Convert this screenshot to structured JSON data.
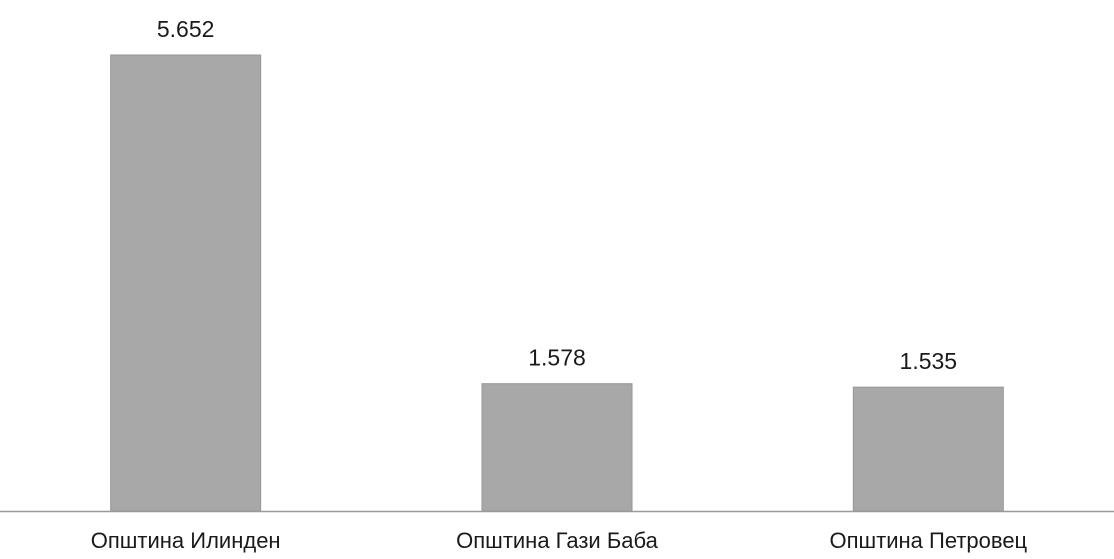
{
  "chart_data": {
    "type": "bar",
    "categories": [
      "Општина Илинден",
      "Општина Гази Баба",
      "Општина Петровец"
    ],
    "values": [
      5652,
      1578,
      1535
    ],
    "value_labels": [
      "5.652",
      "1.578",
      "1.535"
    ],
    "title": "",
    "xlabel": "",
    "ylabel": "",
    "ylim": [
      0,
      5652
    ],
    "grid": false,
    "legend": "none",
    "bar_color": "#a8a8a8"
  }
}
